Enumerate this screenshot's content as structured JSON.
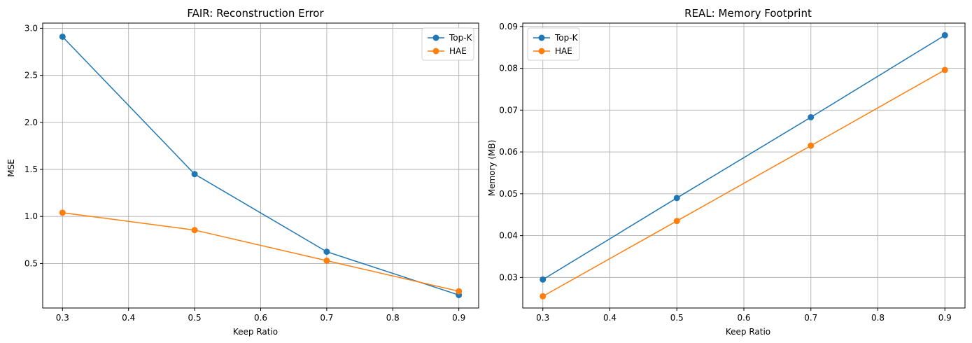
{
  "chart_data": [
    {
      "type": "line",
      "title": "FAIR: Reconstruction Error",
      "xlabel": "Keep Ratio",
      "ylabel": "MSE",
      "x": [
        0.3,
        0.5,
        0.7,
        0.9
      ],
      "xlim": [
        0.27,
        0.93
      ],
      "ylim": [
        0.027,
        3.055
      ],
      "xticks": [
        "0.3",
        "0.4",
        "0.5",
        "0.6",
        "0.7",
        "0.8",
        "0.9"
      ],
      "yticks": [
        "0.5",
        "1.0",
        "1.5",
        "2.0",
        "2.5",
        "3.0"
      ],
      "grid": true,
      "legend_position": "top-right",
      "series": [
        {
          "name": "Top-K",
          "color": "#1f77b4",
          "values": [
            2.91,
            1.45,
            0.625,
            0.165
          ]
        },
        {
          "name": "HAE",
          "color": "#ff7f0e",
          "values": [
            1.04,
            0.855,
            0.53,
            0.205
          ]
        }
      ]
    },
    {
      "type": "line",
      "title": "REAL: Memory Footprint",
      "xlabel": "Keep Ratio",
      "ylabel": "Memory (MB)",
      "x": [
        0.3,
        0.5,
        0.7,
        0.9
      ],
      "xlim": [
        0.27,
        0.93
      ],
      "ylim": [
        0.0227,
        0.0908
      ],
      "xticks": [
        "0.3",
        "0.4",
        "0.5",
        "0.6",
        "0.7",
        "0.8",
        "0.9"
      ],
      "yticks": [
        "0.03",
        "0.04",
        "0.05",
        "0.06",
        "0.07",
        "0.08",
        "0.09"
      ],
      "grid": true,
      "legend_position": "top-left",
      "series": [
        {
          "name": "Top-K",
          "color": "#1f77b4",
          "values": [
            0.0295,
            0.049,
            0.0683,
            0.0879
          ]
        },
        {
          "name": "HAE",
          "color": "#ff7f0e",
          "values": [
            0.0255,
            0.0435,
            0.0615,
            0.0796
          ]
        }
      ]
    }
  ]
}
